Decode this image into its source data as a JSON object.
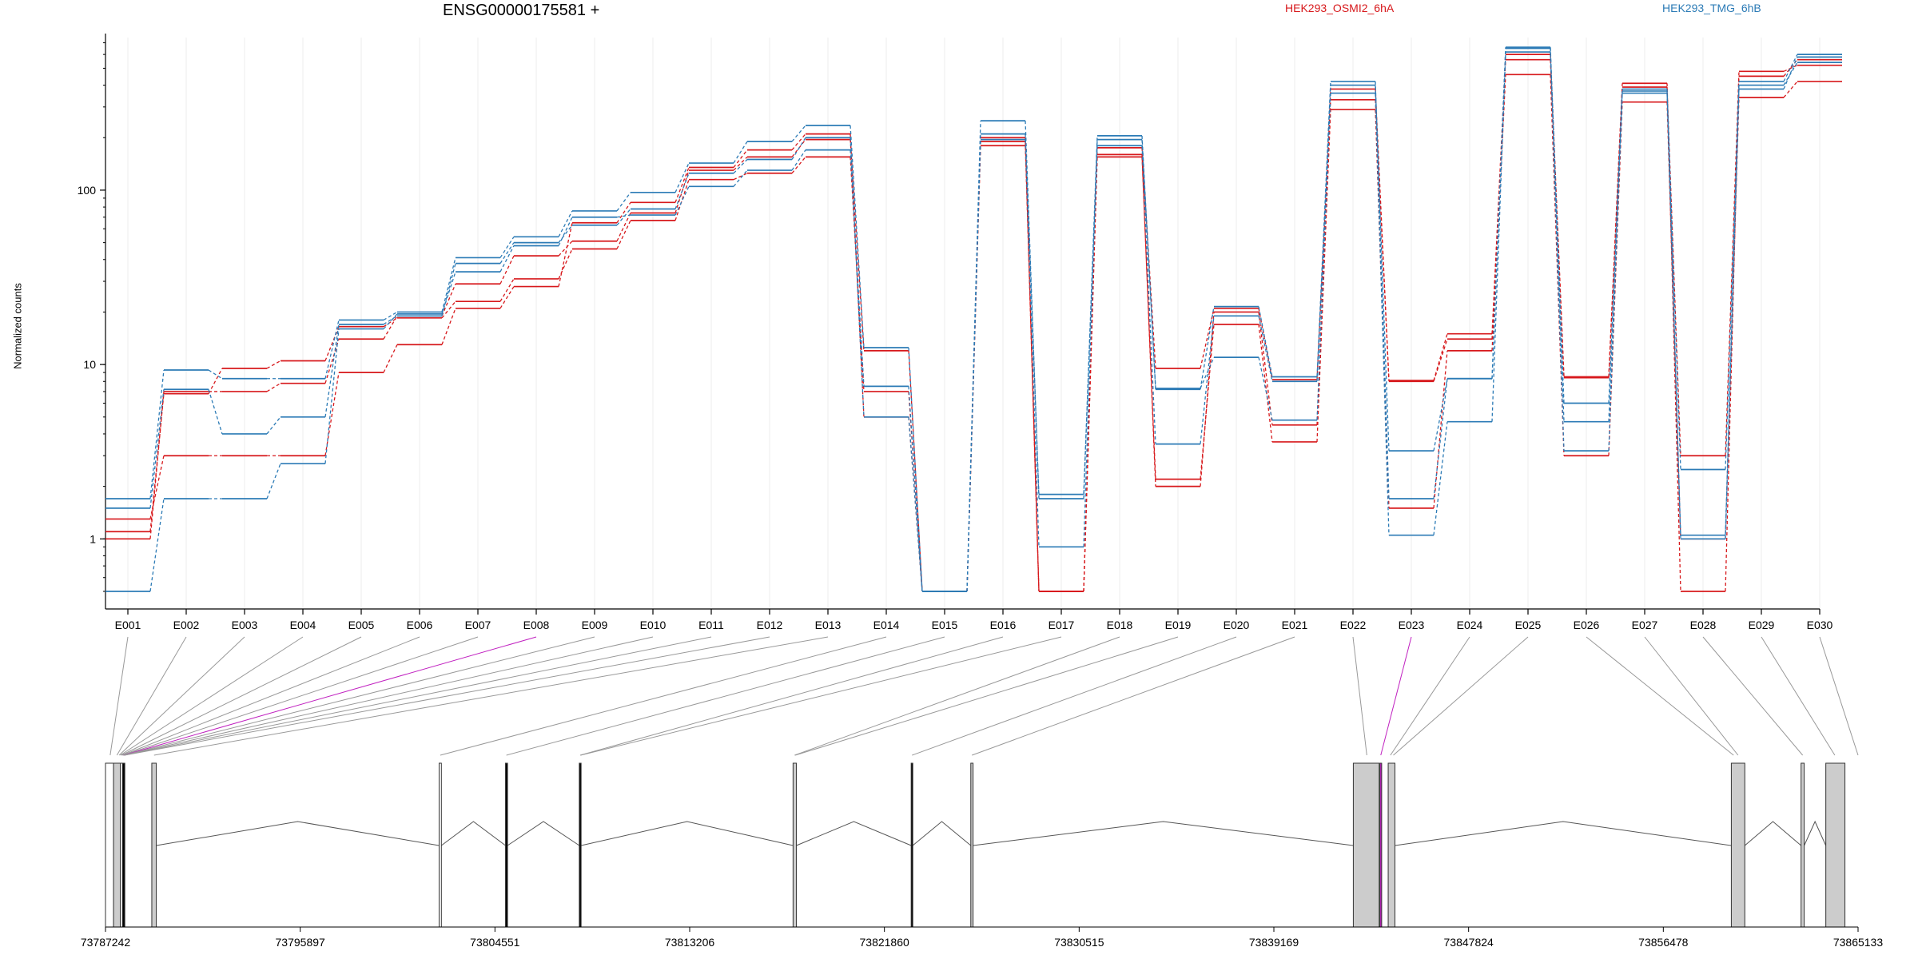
{
  "chart_data": {
    "type": "line",
    "title": "ENSG00000175581 +",
    "ylabel": "Normalized counts",
    "xlabel": "",
    "yscale": "log",
    "ylim": [
      0.5,
      750
    ],
    "y_ticks": [
      {
        "v": 1,
        "label": "1"
      },
      {
        "v": 10,
        "label": "10"
      },
      {
        "v": 100,
        "label": "100"
      }
    ],
    "grid": true,
    "legend_position": "top",
    "categories": [
      "E001",
      "E002",
      "E003",
      "E004",
      "E005",
      "E006",
      "E007",
      "E008",
      "E009",
      "E010",
      "E011",
      "E012",
      "E013",
      "E014",
      "E015",
      "E016",
      "E017",
      "E018",
      "E019",
      "E020",
      "E021",
      "E022",
      "E023",
      "E024",
      "E025",
      "E026",
      "E027",
      "E028",
      "E029",
      "E030"
    ],
    "series": [
      {
        "name": "HEK293_OSMI2_6hA",
        "group": "HEK293_OSMI2_6hA",
        "color": "#d7191c",
        "values": [
          1.0,
          7.0,
          7.0,
          7.8,
          14.0,
          19.0,
          29.0,
          42.0,
          51.0,
          74.0,
          130.0,
          155.0,
          195.0,
          12.0,
          0.5,
          200.0,
          0.5,
          175.0,
          9.5,
          21.0,
          8.2,
          330.0,
          8.1,
          15.0,
          560.0,
          8.4,
          390.0,
          3.0,
          480.0,
          520.0
        ]
      },
      {
        "name": "HEK293_OSMI2_6hA",
        "group": "HEK293_OSMI2_6hA",
        "color": "#d7191c",
        "values": [
          1.1,
          6.8,
          9.5,
          10.5,
          16.5,
          18.5,
          23.0,
          31.0,
          46.0,
          67.0,
          115.0,
          125.0,
          155.0,
          7.0,
          0.5,
          180.0,
          0.5,
          155.0,
          2.2,
          17.0,
          3.6,
          290.0,
          1.5,
          12.0,
          460.0,
          3.0,
          320.0,
          1.0,
          340.0,
          420.0
        ]
      },
      {
        "name": "HEK293_OSMI2_6hA",
        "group": "HEK293_OSMI2_6hA",
        "color": "#d7191c",
        "values": [
          1.3,
          3.0,
          3.0,
          3.0,
          9.0,
          13.0,
          21.0,
          28.0,
          65.0,
          85.0,
          135.0,
          170.0,
          210.0,
          5.0,
          0.5,
          190.0,
          0.5,
          160.0,
          2.0,
          20.0,
          4.5,
          380.0,
          8.0,
          14.0,
          600.0,
          8.5,
          410.0,
          0.5,
          450.0,
          560.0
        ]
      },
      {
        "name": "HEK293_TMG_6hB",
        "group": "HEK293_TMG_6hB",
        "color": "#2c7bb6",
        "values": [
          1.7,
          9.3,
          8.3,
          8.3,
          18.0,
          20.0,
          41.0,
          54.0,
          76.0,
          97.0,
          143.0,
          190.0,
          235.0,
          12.5,
          0.5,
          250.0,
          1.7,
          205.0,
          7.2,
          21.5,
          8.5,
          420.0,
          1.7,
          8.3,
          660.0,
          6.0,
          380.0,
          1.05,
          420.0,
          600.0
        ]
      },
      {
        "name": "HEK293_TMG_6hB",
        "group": "HEK293_TMG_6hB",
        "color": "#2c7bb6",
        "values": [
          0.5,
          1.7,
          1.7,
          2.7,
          16.0,
          19.5,
          34.0,
          48.0,
          70.0,
          72.0,
          105.0,
          130.0,
          170.0,
          7.5,
          0.5,
          195.0,
          0.9,
          195.0,
          7.3,
          11.0,
          4.8,
          360.0,
          1.05,
          4.7,
          620.0,
          3.2,
          370.0,
          2.5,
          400.0,
          540.0
        ]
      },
      {
        "name": "HEK293_TMG_6hB",
        "group": "HEK293_TMG_6hB",
        "color": "#2c7bb6",
        "values": [
          1.5,
          7.2,
          4.0,
          5.0,
          17.0,
          19.0,
          38.0,
          50.0,
          63.0,
          78.0,
          125.0,
          150.0,
          200.0,
          5.0,
          0.5,
          210.0,
          1.8,
          180.0,
          3.5,
          19.0,
          8.0,
          400.0,
          3.2,
          8.3,
          650.0,
          4.7,
          360.0,
          1.0,
          380.0,
          580.0
        ]
      }
    ],
    "gene_model": {
      "coord_ticks": [
        {
          "v": 73787242,
          "label": "73787242"
        },
        {
          "v": 73795897,
          "label": "73795897"
        },
        {
          "v": 73804551,
          "label": "73804551"
        },
        {
          "v": 73813206,
          "label": "73813206"
        },
        {
          "v": 73821860,
          "label": "73821860"
        },
        {
          "v": 73830515,
          "label": "73830515"
        },
        {
          "v": 73839169,
          "label": "73839169"
        },
        {
          "v": 73847824,
          "label": "73847824"
        },
        {
          "v": 73856478,
          "label": "73856478"
        },
        {
          "v": 73865133,
          "label": "73865133"
        }
      ],
      "blocks": [
        {
          "start": 73787242,
          "end": 73787600,
          "fill": "#ffffff"
        },
        {
          "start": 73787600,
          "end": 73787900,
          "fill": "#cccccc"
        },
        {
          "start": 73787900,
          "end": 73788000,
          "fill": "#ffffff"
        },
        {
          "start": 73788000,
          "end": 73788100,
          "fill": "#000000"
        },
        {
          "start": 73789300,
          "end": 73789500,
          "fill": "#cccccc"
        },
        {
          "start": 73802070,
          "end": 73802170,
          "fill": "#ffffff"
        },
        {
          "start": 73805020,
          "end": 73805110,
          "fill": "#000000"
        },
        {
          "start": 73808300,
          "end": 73808380,
          "fill": "#000000"
        },
        {
          "start": 73817800,
          "end": 73817950,
          "fill": "#cccccc"
        },
        {
          "start": 73823050,
          "end": 73823120,
          "fill": "#000000"
        },
        {
          "start": 73825700,
          "end": 73825800,
          "fill": "#cccccc"
        },
        {
          "start": 73842700,
          "end": 73843850,
          "fill": "#cccccc"
        },
        {
          "start": 73843880,
          "end": 73843960,
          "fill": "#c020c0"
        },
        {
          "start": 73844250,
          "end": 73844550,
          "fill": "#cccccc"
        },
        {
          "start": 73859500,
          "end": 73860100,
          "fill": "#cccccc"
        },
        {
          "start": 73862600,
          "end": 73862740,
          "fill": "#cccccc"
        },
        {
          "start": 73863700,
          "end": 73864550,
          "fill": "#cccccc"
        }
      ],
      "introns": [
        [
          73789500,
          73802070
        ],
        [
          73802170,
          73805020
        ],
        [
          73805110,
          73808300
        ],
        [
          73808380,
          73817800
        ],
        [
          73817950,
          73823050
        ],
        [
          73823120,
          73825700
        ],
        [
          73825800,
          73842700
        ],
        [
          73844550,
          73859500
        ],
        [
          73860100,
          73862600
        ],
        [
          73862740,
          73863700
        ]
      ],
      "connectors": [
        {
          "exon": "E001",
          "pos": 73787450,
          "color": "#999999"
        },
        {
          "exon": "E002",
          "pos": 73787750,
          "color": "#999999"
        },
        {
          "exon": "E003",
          "pos": 73787850,
          "color": "#999999"
        },
        {
          "exon": "E004",
          "pos": 73787900,
          "color": "#999999"
        },
        {
          "exon": "E005",
          "pos": 73787950,
          "color": "#999999"
        },
        {
          "exon": "E006",
          "pos": 73788000,
          "color": "#999999"
        },
        {
          "exon": "E007",
          "pos": 73788030,
          "color": "#999999"
        },
        {
          "exon": "E008",
          "pos": 73788050,
          "color": "#c020c0"
        },
        {
          "exon": "E009",
          "pos": 73788060,
          "color": "#999999"
        },
        {
          "exon": "E010",
          "pos": 73788070,
          "color": "#999999"
        },
        {
          "exon": "E011",
          "pos": 73788080,
          "color": "#999999"
        },
        {
          "exon": "E012",
          "pos": 73788090,
          "color": "#999999"
        },
        {
          "exon": "E013",
          "pos": 73789400,
          "color": "#999999"
        },
        {
          "exon": "E014",
          "pos": 73802120,
          "color": "#999999"
        },
        {
          "exon": "E015",
          "pos": 73805060,
          "color": "#999999"
        },
        {
          "exon": "E016",
          "pos": 73808340,
          "color": "#999999"
        },
        {
          "exon": "E017",
          "pos": 73808360,
          "color": "#999999"
        },
        {
          "exon": "E018",
          "pos": 73817870,
          "color": "#999999"
        },
        {
          "exon": "E019",
          "pos": 73817900,
          "color": "#999999"
        },
        {
          "exon": "E020",
          "pos": 73823090,
          "color": "#999999"
        },
        {
          "exon": "E021",
          "pos": 73825750,
          "color": "#999999"
        },
        {
          "exon": "E022",
          "pos": 73843300,
          "color": "#999999"
        },
        {
          "exon": "E023",
          "pos": 73843920,
          "color": "#c020c0"
        },
        {
          "exon": "E024",
          "pos": 73844350,
          "color": "#999999"
        },
        {
          "exon": "E025",
          "pos": 73844480,
          "color": "#999999"
        },
        {
          "exon": "E026",
          "pos": 73859600,
          "color": "#999999"
        },
        {
          "exon": "E027",
          "pos": 73859800,
          "color": "#999999"
        },
        {
          "exon": "E028",
          "pos": 73862670,
          "color": "#999999"
        },
        {
          "exon": "E029",
          "pos": 73864100,
          "color": "#999999"
        },
        {
          "exon": "E030",
          "pos": 73865133,
          "color": "#999999"
        }
      ]
    }
  }
}
